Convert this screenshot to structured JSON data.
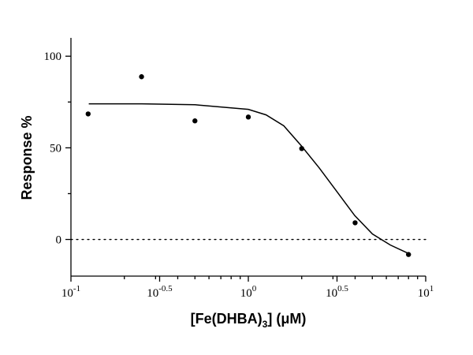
{
  "chart_data": {
    "type": "scatter",
    "xlabel_parts": [
      "[Fe(DHBA)",
      "3",
      "] (μM)"
    ],
    "ylabel": "Response %",
    "xscale": "log",
    "xlim": [
      0.1,
      10
    ],
    "xticks": [
      {
        "value": 0.1,
        "label": "10",
        "exponent": "-1"
      },
      {
        "value": 0.3162,
        "label": "10",
        "exponent": "-0.5"
      },
      {
        "value": 1,
        "label": "10",
        "exponent": "0"
      },
      {
        "value": 3.162,
        "label": "10",
        "exponent": "0.5"
      },
      {
        "value": 10,
        "label": "10",
        "exponent": "1"
      }
    ],
    "xminorticks": [
      0.2,
      0.3,
      0.4,
      0.5,
      0.6,
      0.7,
      0.8,
      0.9,
      2,
      3,
      4,
      5,
      6,
      7,
      8,
      9
    ],
    "ylim": [
      -20,
      110
    ],
    "yticks": [
      0,
      50,
      100
    ],
    "yminorticks": [
      25,
      75
    ],
    "hline": 0,
    "series": [
      {
        "color": "#000000",
        "x": [
          0.125,
          0.25,
          0.5,
          1,
          2,
          4,
          8
        ],
        "values": [
          68.5,
          88.8,
          64.7,
          66.8,
          49.6,
          9.1,
          -8.2
        ]
      },
      {
        "color": "#000000",
        "line": true,
        "x": [
          0.126,
          0.251,
          0.501,
          1,
          1.259,
          1.585,
          1.995,
          2.512,
          3.162,
          3.981,
          5.012,
          6.31,
          8.13
        ],
        "values": [
          74,
          74,
          73.5,
          71,
          68,
          62,
          51,
          39,
          26,
          13,
          3,
          -3,
          -8
        ]
      }
    ]
  }
}
